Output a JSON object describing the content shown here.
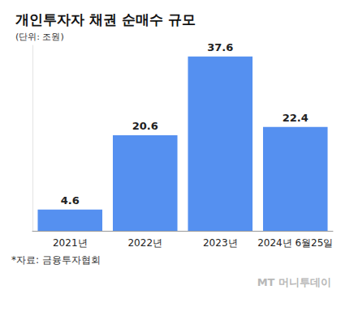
{
  "chart_data": {
    "type": "bar",
    "title": "개인투자자 채권 순매수 규모",
    "subtitle": "(단위: 조원)",
    "categories": [
      "2021년",
      "2022년",
      "2023년",
      "2024년 6월25일"
    ],
    "values": [
      4.6,
      20.6,
      37.6,
      22.4
    ],
    "color": "#5590f0",
    "ylim": [
      0,
      40
    ],
    "grid": false,
    "data_labels": true,
    "tick_labels": "x",
    "annotations": [
      "*자료: 금융투자협회",
      "MT 머니투데이"
    ]
  }
}
